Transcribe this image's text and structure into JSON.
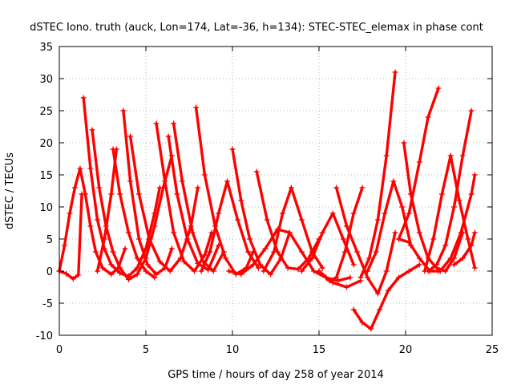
{
  "chart_data": {
    "type": "scatter",
    "title": "dSTEC Iono. truth (auck, Lon=174, Lat=-36, h=134): STEC-STEC_elemax in phase cont",
    "xlabel": "GPS time / hours of day 258 of year 2014",
    "ylabel": "dSTEC  / TECUs",
    "xlim": [
      0,
      25
    ],
    "ylim": [
      -10,
      35
    ],
    "xticks": [
      0,
      5,
      10,
      15,
      20,
      25
    ],
    "yticks": [
      -10,
      -5,
      0,
      5,
      10,
      15,
      20,
      25,
      30,
      35
    ],
    "grid": true,
    "legend": "none",
    "marker": "plus",
    "color": "#ff0000",
    "series": [
      {
        "x": [
          0.0,
          0.3,
          0.6,
          0.9,
          1.2,
          1.5,
          1.8,
          2.1,
          2.5,
          3.0,
          3.4,
          3.8
        ],
        "y": [
          0,
          4,
          9,
          13,
          16,
          12,
          7,
          3,
          0.5,
          -0.5,
          0.5,
          3.5
        ]
      },
      {
        "x": [
          0.0,
          0.4,
          0.8,
          1.1,
          1.3
        ],
        "y": [
          0,
          -0.4,
          -1.2,
          -0.6,
          12
        ]
      },
      {
        "x": [
          1.4,
          1.8,
          2.2,
          2.6,
          3.0,
          3.5,
          4.0,
          4.5,
          5.0,
          5.5,
          5.8
        ],
        "y": [
          27,
          16,
          8,
          3.5,
          1,
          -0.3,
          -0.8,
          0.5,
          3.5,
          9,
          13
        ]
      },
      {
        "x": [
          1.9,
          2.3,
          2.7,
          3.1,
          3.5,
          4.0,
          4.5,
          5.0,
          5.5,
          6.0,
          6.5
        ],
        "y": [
          22,
          13,
          7,
          3,
          0.5,
          -1.3,
          -0.5,
          2,
          7,
          13,
          18
        ]
      },
      {
        "x": [
          2.2,
          2.6,
          3.0,
          3.3
        ],
        "y": [
          0,
          5,
          12,
          19
        ]
      },
      {
        "x": [
          3.1,
          3.5,
          4.0,
          4.5,
          5.0,
          5.5
        ],
        "y": [
          19,
          12,
          6,
          2,
          0,
          -1
        ]
      },
      {
        "x": [
          3.7,
          4.1,
          4.6,
          5.1,
          5.6,
          6.1,
          6.5
        ],
        "y": [
          25,
          14,
          5,
          1,
          -0.5,
          0.5,
          3.5
        ]
      },
      {
        "x": [
          4.1,
          4.6,
          5.2,
          5.8,
          6.4,
          7.0,
          7.6,
          8.0
        ],
        "y": [
          21,
          12,
          5,
          1.5,
          0,
          2,
          7,
          13
        ]
      },
      {
        "x": [
          5.6,
          6.1,
          6.6,
          7.2,
          7.8,
          8.4,
          8.8
        ],
        "y": [
          23,
          14,
          6,
          1.5,
          0,
          2.5,
          6
        ]
      },
      {
        "x": [
          6.3,
          6.8,
          7.4,
          8.0,
          8.6,
          9.2
        ],
        "y": [
          21,
          12,
          5,
          1.2,
          0.2,
          4
        ]
      },
      {
        "x": [
          6.6,
          7.1,
          7.7,
          8.3,
          8.9,
          9.5
        ],
        "y": [
          23,
          14,
          6,
          1.5,
          0,
          3
        ]
      },
      {
        "x": [
          7.9,
          8.4,
          9.0,
          9.6,
          10.2,
          10.8,
          11.2
        ],
        "y": [
          25.5,
          15,
          7,
          2,
          -0.5,
          0.5,
          3
        ]
      },
      {
        "x": [
          8.2,
          8.7,
          9.2,
          9.7,
          10.3,
          10.9,
          11.5
        ],
        "y": [
          0,
          3,
          9,
          14,
          8,
          3,
          0.5
        ]
      },
      {
        "x": [
          10.0,
          10.5,
          11.0,
          11.6,
          12.2,
          12.8,
          13.3
        ],
        "y": [
          19,
          11,
          5,
          1,
          -0.5,
          2,
          6
        ]
      },
      {
        "x": [
          11.4,
          12.0,
          12.6,
          13.2,
          13.8,
          14.4,
          15.0
        ],
        "y": [
          15.5,
          8,
          3,
          0.5,
          0.3,
          2,
          5
        ]
      },
      {
        "x": [
          11.8,
          12.4,
          12.9,
          13.4,
          14.0,
          14.6,
          15.2
        ],
        "y": [
          0,
          3,
          9,
          13,
          8,
          3,
          0.5
        ]
      },
      {
        "x": [
          9.8,
          10.5,
          11.2,
          11.9,
          12.6,
          13.3,
          14.0,
          14.7,
          15.4,
          16.1,
          16.8
        ],
        "y": [
          0,
          -0.5,
          1,
          3.5,
          6.5,
          6,
          3,
          0,
          -1,
          -1.5,
          -1
        ]
      },
      {
        "x": [
          14.0,
          14.6,
          15.2,
          15.8,
          16.4,
          17.0
        ],
        "y": [
          0,
          2,
          6,
          9,
          5,
          1
        ]
      },
      {
        "x": [
          15.0,
          15.6,
          16.0,
          16.5,
          17.0,
          17.5
        ],
        "y": [
          0,
          -1.5,
          -1,
          3,
          9,
          13
        ]
      },
      {
        "x": [
          16.0,
          16.6,
          17.2,
          17.8,
          18.4,
          18.9,
          19.4
        ],
        "y": [
          13,
          7,
          3,
          -1,
          -3.5,
          0,
          6
        ]
      },
      {
        "x": [
          15.0,
          15.8,
          16.6,
          17.4
        ],
        "y": [
          0,
          -1.8,
          -2.5,
          -1.5
        ]
      },
      {
        "x": [
          17.0,
          17.5,
          18.0,
          18.5,
          19.0,
          19.6,
          20.2,
          20.8
        ],
        "y": [
          -6,
          -8,
          -9,
          -6,
          -3,
          -1,
          0,
          1
        ]
      },
      {
        "x": [
          17.4,
          17.9,
          18.4,
          18.9,
          19.4
        ],
        "y": [
          -1,
          2,
          8,
          18,
          31
        ]
      },
      {
        "x": [
          17.8,
          18.3,
          18.8,
          19.3,
          19.8,
          20.3
        ],
        "y": [
          0,
          3,
          9,
          14,
          10,
          4
        ]
      },
      {
        "x": [
          19.9,
          20.3,
          20.8,
          21.3,
          21.8,
          22.3,
          22.8,
          23.3
        ],
        "y": [
          20,
          12,
          6,
          2,
          0.5,
          0,
          2,
          6
        ]
      },
      {
        "x": [
          19.6,
          20.2,
          20.8,
          21.4,
          21.9
        ],
        "y": [
          5,
          4.5,
          2,
          0,
          0
        ]
      },
      {
        "x": [
          19.6,
          20.2,
          20.8,
          21.3,
          21.9
        ],
        "y": [
          5,
          9,
          17,
          24,
          28.5
        ]
      },
      {
        "x": [
          21.1,
          21.6,
          22.1,
          22.6,
          23.1,
          23.6,
          24.0
        ],
        "y": [
          0,
          5,
          12,
          18,
          11,
          5,
          0.5
        ]
      },
      {
        "x": [
          22.0,
          22.6,
          23.2,
          23.8,
          24.0
        ],
        "y": [
          0,
          2,
          6,
          12,
          15
        ]
      },
      {
        "x": [
          21.3,
          21.8,
          22.3,
          22.8,
          23.3,
          23.8
        ],
        "y": [
          0,
          1,
          4,
          10,
          18,
          25
        ]
      },
      {
        "x": [
          22.8,
          23.3,
          23.8,
          24.0
        ],
        "y": [
          1,
          2,
          4,
          6
        ]
      }
    ]
  }
}
